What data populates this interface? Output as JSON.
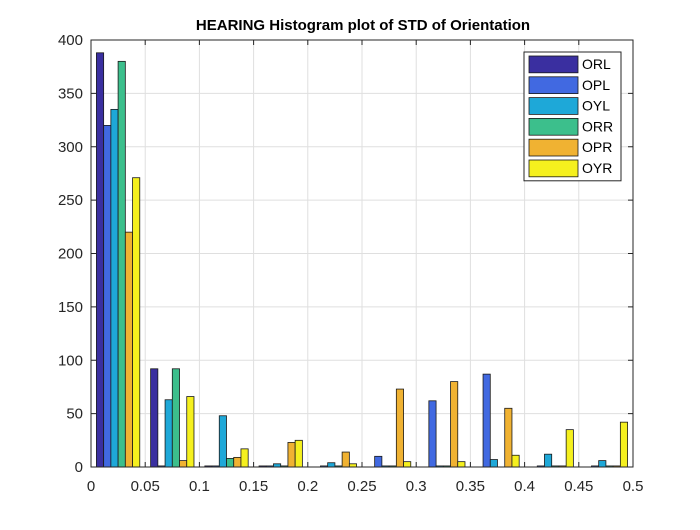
{
  "chart_data": {
    "type": "bar",
    "title": "HEARING Histogram plot of STD of Orientation",
    "xlabel": "",
    "ylabel": "",
    "xlim": [
      0,
      0.5
    ],
    "ylim": [
      0,
      400
    ],
    "xticks": [
      0,
      0.05,
      0.1,
      0.15,
      0.2,
      0.25,
      0.3,
      0.35,
      0.4,
      0.45,
      0.5
    ],
    "yticks": [
      0,
      50,
      100,
      150,
      200,
      250,
      300,
      350,
      400
    ],
    "grid": true,
    "legend_position": "top-right",
    "bin_width": 0.05,
    "categories": [
      0.025,
      0.075,
      0.125,
      0.175,
      0.225,
      0.275,
      0.325,
      0.375,
      0.425,
      0.475
    ],
    "series": [
      {
        "name": "ORL",
        "color": "#3a2fa0",
        "values": [
          388,
          92,
          1,
          1,
          0,
          0,
          0,
          0,
          0,
          0
        ]
      },
      {
        "name": "OPL",
        "color": "#4169e1",
        "values": [
          320,
          1,
          1,
          1,
          1,
          10,
          62,
          87,
          1,
          1
        ]
      },
      {
        "name": "OYL",
        "color": "#1ea8d8",
        "values": [
          335,
          63,
          48,
          3,
          4,
          1,
          1,
          7,
          12,
          6
        ]
      },
      {
        "name": "ORR",
        "color": "#3cbf8c",
        "values": [
          380,
          92,
          8,
          1,
          1,
          1,
          1,
          0,
          1,
          1
        ]
      },
      {
        "name": "OPR",
        "color": "#f0b232",
        "values": [
          220,
          6,
          9,
          23,
          14,
          73,
          80,
          55,
          1,
          1
        ]
      },
      {
        "name": "OYR",
        "color": "#f5f01e",
        "values": [
          271,
          66,
          17,
          25,
          3,
          5,
          5,
          11,
          35,
          42
        ]
      }
    ]
  }
}
